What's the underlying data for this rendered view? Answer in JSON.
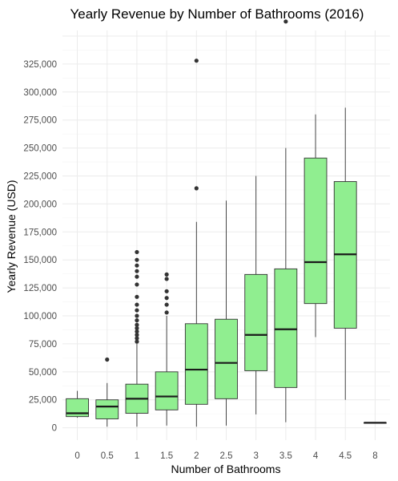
{
  "chart_data": {
    "type": "boxplot",
    "title": "Yearly Revenue by Number of Bathrooms (2016)",
    "xlabel": "Number of Bathrooms",
    "ylabel": "Yearly Revenue (USD)",
    "categories": [
      "0",
      "0.5",
      "1",
      "1.5",
      "2",
      "2.5",
      "3",
      "3.5",
      "4",
      "4.5",
      "8"
    ],
    "ylim": [
      -11000,
      355000
    ],
    "y_ticks": [
      0,
      25000,
      50000,
      75000,
      100000,
      125000,
      150000,
      175000,
      200000,
      225000,
      250000,
      275000,
      300000,
      325000
    ],
    "y_tick_labels": [
      "0",
      "25,000",
      "50,000",
      "75,000",
      "100,000",
      "125,000",
      "150,000",
      "175,000",
      "200,000",
      "225,000",
      "250,000",
      "275,000",
      "300,000",
      "325,000"
    ],
    "box_fill": "#90ee90",
    "grid": true,
    "boxes": [
      {
        "category": "0",
        "min": 9000,
        "q1": 10000,
        "median": 13000,
        "q3": 26000,
        "max": 33000,
        "outliers": []
      },
      {
        "category": "0.5",
        "min": 1000,
        "q1": 8000,
        "median": 19000,
        "q3": 25000,
        "max": 40000,
        "outliers": [
          61000
        ]
      },
      {
        "category": "1",
        "min": 1000,
        "q1": 13000,
        "median": 26000,
        "q3": 39000,
        "max": 75000,
        "outliers": [
          77000,
          80000,
          83000,
          86000,
          89000,
          92000,
          96000,
          100000,
          105000,
          110000,
          117000,
          128000,
          135000,
          140000,
          145000,
          150000,
          157000
        ]
      },
      {
        "category": "1.5",
        "min": 2000,
        "q1": 16000,
        "median": 28000,
        "q3": 50000,
        "max": 100000,
        "outliers": [
          103000,
          110000,
          116000,
          122000,
          133000,
          137000
        ]
      },
      {
        "category": "2",
        "min": 1000,
        "q1": 21000,
        "median": 52000,
        "q3": 93000,
        "max": 184000,
        "outliers": [
          214000,
          328000
        ]
      },
      {
        "category": "2.5",
        "min": 2000,
        "q1": 26000,
        "median": 58000,
        "q3": 97000,
        "max": 203000,
        "outliers": []
      },
      {
        "category": "3",
        "min": 12000,
        "q1": 51000,
        "median": 83000,
        "q3": 137000,
        "max": 225000,
        "outliers": []
      },
      {
        "category": "3.5",
        "min": 5000,
        "q1": 36000,
        "median": 88000,
        "q3": 142000,
        "max": 250000,
        "outliers": [
          363000
        ]
      },
      {
        "category": "4",
        "min": 81000,
        "q1": 111000,
        "median": 148000,
        "q3": 241000,
        "max": 280000,
        "outliers": []
      },
      {
        "category": "4.5",
        "min": 25000,
        "q1": 89000,
        "median": 155000,
        "q3": 220000,
        "max": 286000,
        "outliers": []
      },
      {
        "category": "8",
        "min": 4500,
        "q1": 4500,
        "median": 4500,
        "q3": 4500,
        "max": 4500,
        "outliers": []
      }
    ]
  }
}
